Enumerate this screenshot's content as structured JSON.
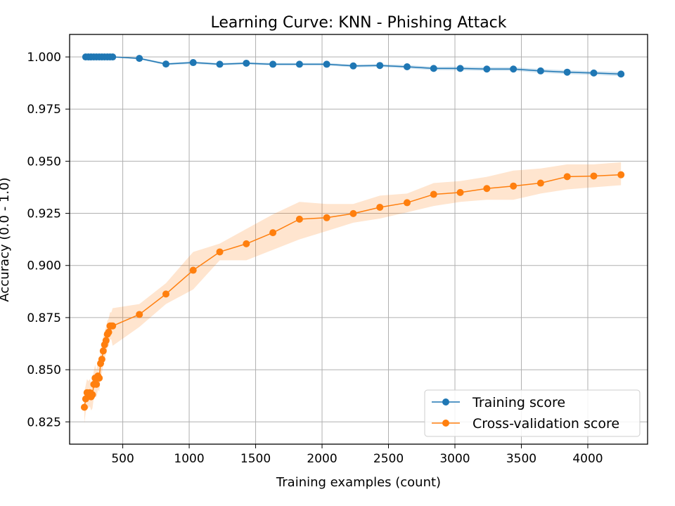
{
  "chart_data": {
    "type": "line",
    "title": "Learning Curve: KNN - Phishing Attack",
    "xlabel": "Training examples (count)",
    "ylabel": "Accuracy (0.0 - 1.0)",
    "xlim": [
      100,
      4450
    ],
    "ylim": [
      0.8143,
      1.0108
    ],
    "xticks": [
      500,
      1000,
      1500,
      2000,
      2500,
      3000,
      3500,
      4000
    ],
    "yticks": [
      0.825,
      0.85,
      0.875,
      0.9,
      0.925,
      0.95,
      0.975,
      1.0
    ],
    "ytick_labels": [
      "0.825",
      "0.850",
      "0.875",
      "0.900",
      "0.925",
      "0.950",
      "0.975",
      "1.000"
    ],
    "grid": true,
    "legend_position": "bottom-right",
    "series": [
      {
        "name": "Training score",
        "color": "#1f77b4",
        "x": [
          221,
          241,
          262,
          282,
          302,
          323,
          343,
          363,
          384,
          404,
          424,
          625,
          825,
          1030,
          1230,
          1430,
          1630,
          1830,
          2035,
          2235,
          2435,
          2640,
          2840,
          3040,
          3240,
          3440,
          3645,
          3845,
          4045,
          4250
        ],
        "y": [
          1.0,
          1.0,
          1.0,
          1.0,
          1.0,
          1.0,
          1.0,
          1.0,
          1.0,
          1.0,
          1.0,
          0.9993,
          0.9966,
          0.9973,
          0.9965,
          0.997,
          0.9965,
          0.9965,
          0.9965,
          0.9957,
          0.9959,
          0.9953,
          0.9945,
          0.9945,
          0.9942,
          0.9942,
          0.9933,
          0.9927,
          0.9923,
          0.9918
        ],
        "lower": [
          1.0,
          1.0,
          1.0,
          1.0,
          1.0,
          1.0,
          1.0,
          1.0,
          1.0,
          1.0,
          1.0,
          0.9988,
          0.996,
          0.9967,
          0.9959,
          0.9964,
          0.9959,
          0.9959,
          0.9959,
          0.995,
          0.9952,
          0.9945,
          0.9937,
          0.9936,
          0.9933,
          0.9933,
          0.9924,
          0.9918,
          0.9914,
          0.9908
        ],
        "upper": [
          1.0,
          1.0,
          1.0,
          1.0,
          1.0,
          1.0,
          1.0,
          1.0,
          1.0,
          1.0,
          1.0,
          0.9998,
          0.9972,
          0.9979,
          0.9971,
          0.9976,
          0.9971,
          0.9971,
          0.9971,
          0.9964,
          0.9966,
          0.9961,
          0.9953,
          0.9954,
          0.9951,
          0.9951,
          0.9942,
          0.9936,
          0.9932,
          0.9928
        ]
      },
      {
        "name": "Cross-validation score",
        "color": "#ff7f0e",
        "x": [
          211,
          221,
          231,
          241,
          252,
          262,
          272,
          282,
          292,
          302,
          313,
          323,
          333,
          343,
          353,
          363,
          374,
          384,
          394,
          404,
          414,
          424,
          625,
          825,
          1030,
          1230,
          1430,
          1630,
          1830,
          2035,
          2235,
          2435,
          2640,
          2840,
          3040,
          3240,
          3440,
          3645,
          3845,
          4045,
          4250
        ],
        "y": [
          0.832,
          0.836,
          0.839,
          0.838,
          0.839,
          0.837,
          0.838,
          0.843,
          0.846,
          0.843,
          0.847,
          0.846,
          0.853,
          0.855,
          0.859,
          0.862,
          0.864,
          0.867,
          0.868,
          0.871,
          0.871,
          0.871,
          0.8765,
          0.8863,
          0.8977,
          0.9065,
          0.9104,
          0.9157,
          0.9222,
          0.9229,
          0.9249,
          0.9279,
          0.9301,
          0.9341,
          0.935,
          0.9369,
          0.9381,
          0.9395,
          0.9426,
          0.9429,
          0.9435
        ],
        "lower": [
          0.8245,
          0.8295,
          0.8325,
          0.8315,
          0.8325,
          0.8305,
          0.8315,
          0.8365,
          0.8395,
          0.8365,
          0.8405,
          0.8395,
          0.8465,
          0.8485,
          0.8525,
          0.8555,
          0.8575,
          0.8605,
          0.8615,
          0.8645,
          0.8645,
          0.8615,
          0.8705,
          0.8815,
          0.8885,
          0.9025,
          0.9025,
          0.9075,
          0.9125,
          0.9165,
          0.9205,
          0.9225,
          0.9255,
          0.9285,
          0.9305,
          0.9315,
          0.9315,
          0.9345,
          0.9365,
          0.9375,
          0.9385
        ],
        "upper": [
          0.8395,
          0.8425,
          0.8455,
          0.8445,
          0.8455,
          0.8435,
          0.8445,
          0.8495,
          0.8525,
          0.8495,
          0.8535,
          0.8525,
          0.8595,
          0.8615,
          0.8655,
          0.8685,
          0.8705,
          0.8735,
          0.8745,
          0.8775,
          0.8775,
          0.8795,
          0.8815,
          0.8915,
          0.9065,
          0.9105,
          0.9175,
          0.9245,
          0.9305,
          0.9295,
          0.9295,
          0.9335,
          0.9345,
          0.9395,
          0.9405,
          0.9425,
          0.9455,
          0.9465,
          0.9485,
          0.9485,
          0.9495
        ]
      }
    ]
  }
}
